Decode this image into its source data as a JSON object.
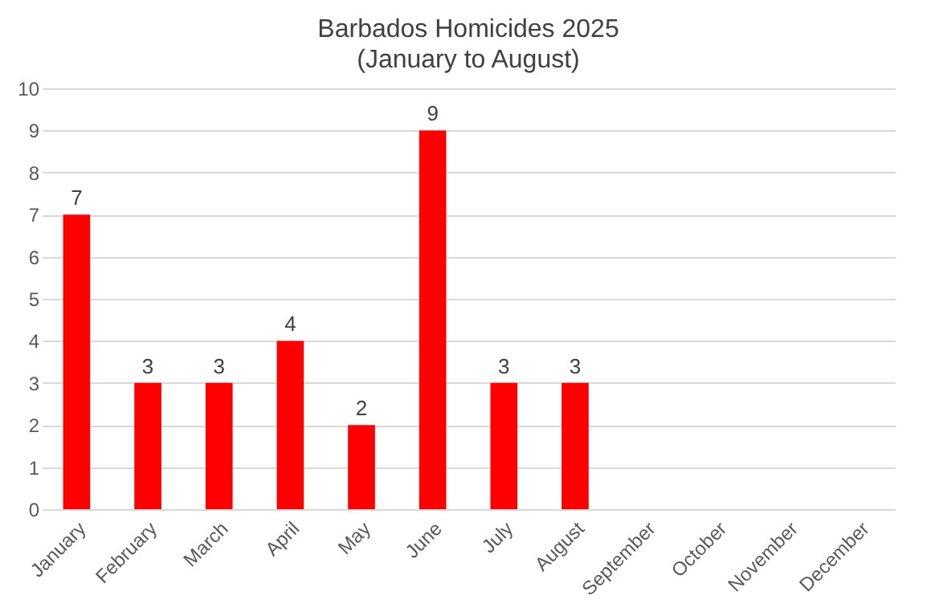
{
  "chart_data": {
    "type": "bar",
    "title": "Barbados Homicides 2025",
    "subtitle": "(January to August)",
    "categories": [
      "January",
      "February",
      "March",
      "April",
      "May",
      "June",
      "July",
      "August",
      "September",
      "October",
      "November",
      "December"
    ],
    "series": [
      {
        "color": "#ff0000",
        "values": [
          7,
          3,
          3,
          4,
          2,
          9,
          3,
          3,
          null,
          null,
          null,
          null
        ]
      }
    ],
    "ylim": [
      0,
      10
    ],
    "yticks": [
      0,
      1,
      2,
      3,
      4,
      5,
      6,
      7,
      8,
      9,
      10
    ],
    "grid": "y",
    "data_labels": true
  }
}
